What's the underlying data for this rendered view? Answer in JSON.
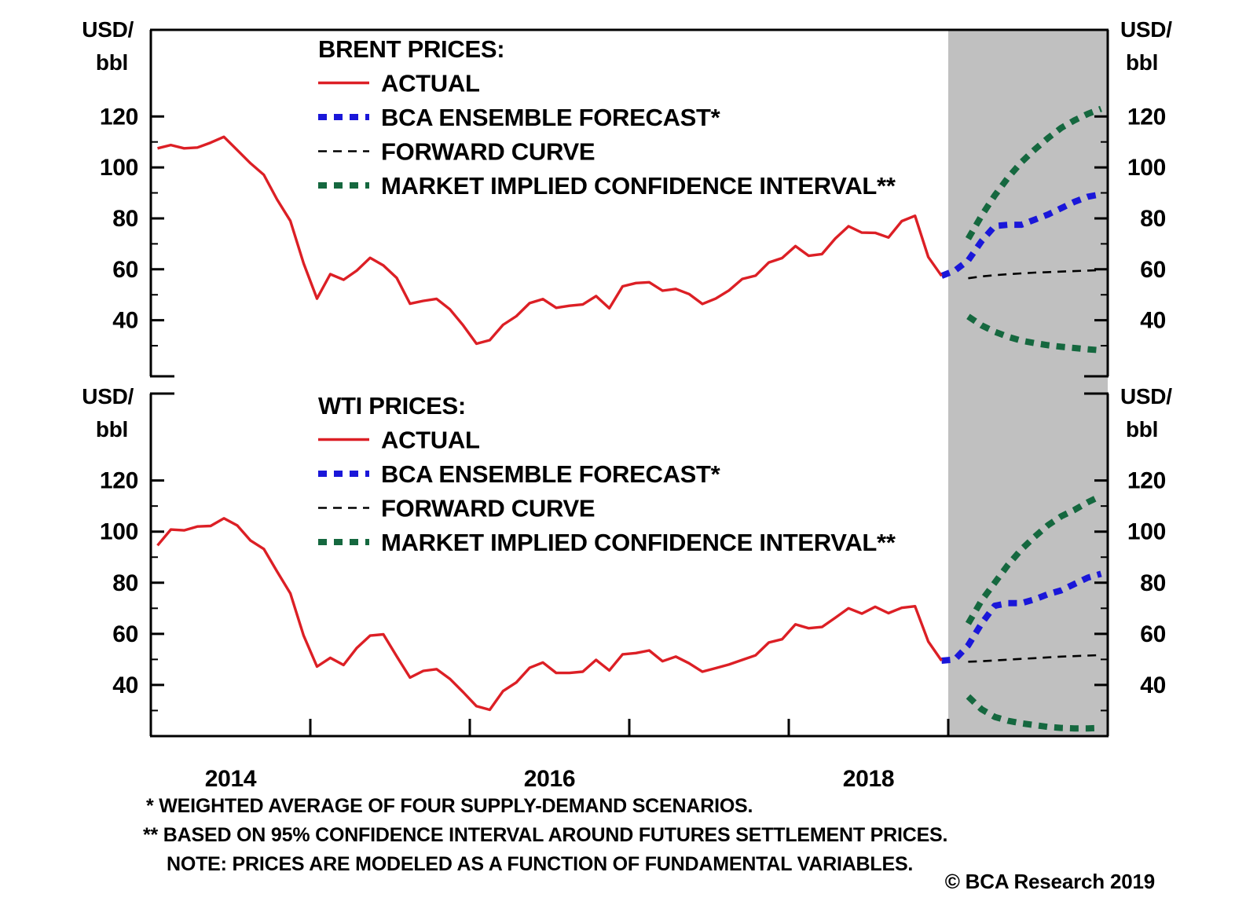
{
  "page": {
    "background": "#ffffff",
    "copyright": "© BCA Research 2019"
  },
  "footnotes": {
    "line1": "*  WEIGHTED AVERAGE OF FOUR SUPPLY-DEMAND SCENARIOS.",
    "line2": "** BASED ON 95% CONFIDENCE INTERVAL AROUND FUTURES SETTLEMENT PRICES.",
    "line3": "NOTE: PRICES ARE MODELED AS A FUNCTION OF FUNDAMENTAL VARIABLES."
  },
  "colors": {
    "actual": "#dc1f25",
    "forecast": "#1a17d9",
    "forward": "#000000",
    "confidence": "#15683f",
    "shading": "#c0c0c0",
    "axis": "#000000",
    "text": "#000000",
    "background": "#ffffff"
  },
  "chart_data": [
    {
      "type": "line",
      "id": "brent",
      "legend_title": "BRENT PRICES:",
      "y_unit": [
        "USD/",
        "bbl"
      ],
      "ylim": [
        18,
        154
      ],
      "y_ticks_labeled": [
        40,
        60,
        80,
        100,
        120
      ],
      "y_tick_minor_step": 10,
      "xlim": [
        2014,
        2020
      ],
      "x_ticks": [
        2014,
        2015,
        2016,
        2017,
        2018,
        2019
      ],
      "x_labels": [
        {
          "text": "2014",
          "t": 2014.5
        },
        {
          "text": "2016",
          "t": 2016.5
        },
        {
          "text": "2018",
          "t": 2018.5
        }
      ],
      "forecast_start": 2019.0,
      "show_x_axis": false,
      "legend_keys": [
        "actual",
        "forecast",
        "forward",
        "ci_upper"
      ],
      "series": {
        "actual": {
          "label": "ACTUAL",
          "style": "solid",
          "color": "#dc1f25",
          "start": 2014.0417,
          "values": [
            107.5,
            108.8,
            107.5,
            107.8,
            109.7,
            112.0,
            106.8,
            101.6,
            97.1,
            87.4,
            79.0,
            62.3,
            48.5,
            58.1,
            55.9,
            59.5,
            64.5,
            61.5,
            56.6,
            46.5,
            47.6,
            48.4,
            44.3,
            38.0,
            30.8,
            32.2,
            38.2,
            41.6,
            46.7,
            48.3,
            44.9,
            45.7,
            46.2,
            49.5,
            44.7,
            53.3,
            54.6,
            54.9,
            51.6,
            52.3,
            50.3,
            46.4,
            48.5,
            51.7,
            56.2,
            57.5,
            62.7,
            64.4,
            69.1,
            65.3,
            66.0,
            72.1,
            76.9,
            74.4,
            74.3,
            72.5,
            78.9,
            81.0,
            64.8,
            57.4
          ]
        },
        "forecast": {
          "label": "BCA ENSEMBLE FORECAST*",
          "style": "thick-dash",
          "color": "#1a17d9",
          "start": 2018.9583,
          "values": [
            57.4,
            59.5,
            63.5,
            71.0,
            77.0,
            77.5,
            77.5,
            79.5,
            81.5,
            84.0,
            86.5,
            88.5,
            89.5
          ]
        },
        "forward": {
          "label": "FORWARD CURVE",
          "style": "thin-dash",
          "color": "#000000",
          "start": 2019.125,
          "values": [
            56.5,
            57.2,
            57.7,
            58.1,
            58.4,
            58.7,
            58.9,
            59.1,
            59.3,
            59.5,
            59.7
          ]
        },
        "ci_upper": {
          "label": "MARKET IMPLIED CONFIDENCE INTERVAL**",
          "style": "thick-dash",
          "color": "#15683f",
          "start": 2019.125,
          "values": [
            72.0,
            81.0,
            89.0,
            96.0,
            102.0,
            107.0,
            111.5,
            115.5,
            118.5,
            121.0,
            123.0
          ]
        },
        "ci_lower": {
          "label": "",
          "style": "thick-dash",
          "color": "#15683f",
          "start": 2019.125,
          "values": [
            41.5,
            38.0,
            35.5,
            33.5,
            32.0,
            31.0,
            30.2,
            29.6,
            29.1,
            28.6,
            28.2
          ]
        }
      }
    },
    {
      "type": "line",
      "id": "wti",
      "legend_title": "WTI PRICES:",
      "y_unit": [
        "USD/",
        "bbl"
      ],
      "ylim": [
        20,
        154
      ],
      "y_ticks_labeled": [
        40,
        60,
        80,
        100,
        120
      ],
      "y_tick_minor_step": 10,
      "xlim": [
        2014,
        2020
      ],
      "x_ticks": [
        2014,
        2015,
        2016,
        2017,
        2018,
        2019
      ],
      "x_labels": [
        {
          "text": "2014",
          "t": 2014.5
        },
        {
          "text": "2016",
          "t": 2016.5
        },
        {
          "text": "2018",
          "t": 2018.5
        }
      ],
      "forecast_start": 2019.0,
      "show_x_axis": true,
      "legend_keys": [
        "actual",
        "forecast",
        "forward",
        "ci_upper"
      ],
      "series": {
        "actual": {
          "label": "ACTUAL",
          "style": "solid",
          "color": "#dc1f25",
          "start": 2014.0417,
          "values": [
            94.6,
            100.8,
            100.5,
            102.0,
            102.2,
            105.2,
            102.4,
            96.5,
            93.2,
            84.4,
            75.8,
            59.3,
            47.2,
            50.6,
            47.8,
            54.5,
            59.3,
            59.8,
            51.2,
            42.9,
            45.5,
            46.2,
            42.4,
            37.2,
            31.7,
            30.3,
            37.6,
            41.0,
            46.7,
            48.8,
            44.7,
            44.7,
            45.2,
            49.8,
            45.7,
            52.0,
            52.5,
            53.5,
            49.3,
            51.1,
            48.5,
            45.2,
            46.6,
            48.0,
            49.8,
            51.6,
            56.6,
            57.9,
            63.7,
            62.2,
            62.7,
            66.3,
            70.0,
            67.9,
            70.6,
            68.1,
            70.2,
            70.8,
            57.0,
            49.5
          ]
        },
        "forecast": {
          "label": "BCA ENSEMBLE FORECAST*",
          "style": "thick-dash",
          "color": "#1a17d9",
          "start": 2018.9583,
          "values": [
            49.5,
            50.0,
            55.5,
            64.0,
            71.0,
            72.0,
            72.0,
            73.5,
            75.5,
            77.0,
            79.5,
            82.0,
            83.5
          ]
        },
        "forward": {
          "label": "FORWARD CURVE",
          "style": "thin-dash",
          "color": "#000000",
          "start": 2019.125,
          "values": [
            49.1,
            49.3,
            49.6,
            49.9,
            50.2,
            50.5,
            50.8,
            51.1,
            51.3,
            51.5,
            51.7
          ]
        },
        "ci_upper": {
          "label": "MARKET IMPLIED CONFIDENCE INTERVAL**",
          "style": "thick-dash",
          "color": "#15683f",
          "start": 2019.125,
          "values": [
            64.0,
            73.0,
            80.0,
            87.0,
            93.0,
            98.0,
            102.5,
            106.0,
            108.5,
            111.5,
            114.0
          ]
        },
        "ci_lower": {
          "label": "",
          "style": "thick-dash",
          "color": "#15683f",
          "start": 2019.125,
          "values": [
            35.5,
            30.5,
            27.5,
            26.0,
            25.0,
            24.3,
            23.6,
            23.2,
            23.0,
            23.0,
            23.2
          ]
        }
      }
    }
  ]
}
